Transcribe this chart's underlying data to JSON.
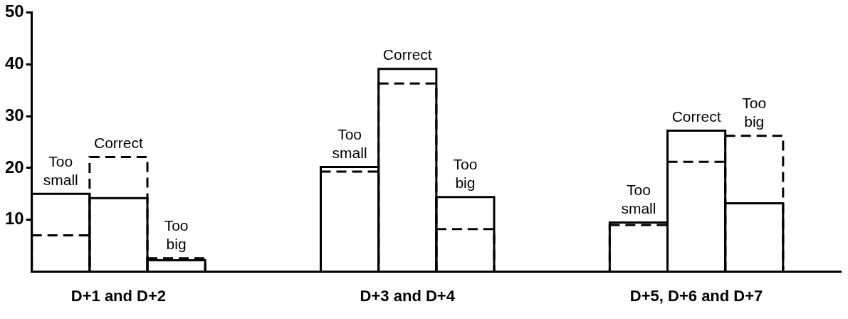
{
  "chart_data": {
    "type": "bar",
    "categories": [
      null,
      "D+1 and D+2",
      null,
      null,
      null,
      null,
      "D+3 and D+4",
      null,
      null,
      null,
      null,
      "D+5, D+6 and D+7",
      null,
      null
    ],
    "series": [
      {
        "color": "#000000",
        "line_style": "solid",
        "values": [
          15,
          14.2,
          2.2,
          null,
          null,
          20.2,
          39.1,
          14.4,
          null,
          null,
          9.5,
          27.2,
          13.2,
          null
        ]
      },
      {
        "color": "#000000",
        "line_style": "dashed",
        "values": [
          7,
          22.1,
          2.6,
          null,
          null,
          19.3,
          36.3,
          8.2,
          null,
          null,
          9,
          21.2,
          26.2,
          null
        ]
      }
    ],
    "ylim": [
      0,
      50
    ],
    "yticks": [
      10,
      20,
      30,
      40,
      50
    ],
    "grid": false,
    "legend": false,
    "annotations": [
      {
        "text": "Too small",
        "y": 15
      },
      {
        "text": "Correct",
        "y": 22.1
      },
      {
        "text": "Too big",
        "y": 2.6
      },
      {
        "text": "Too small",
        "y": 20.2
      },
      {
        "text": "Correct",
        "y": 39.1
      },
      {
        "text": "Too big",
        "y": 14.4
      },
      {
        "text": "Too small",
        "y": 9.5
      },
      {
        "text": "Correct",
        "y": 27.2
      },
      {
        "text": "Too big",
        "y": 26.2
      }
    ]
  }
}
